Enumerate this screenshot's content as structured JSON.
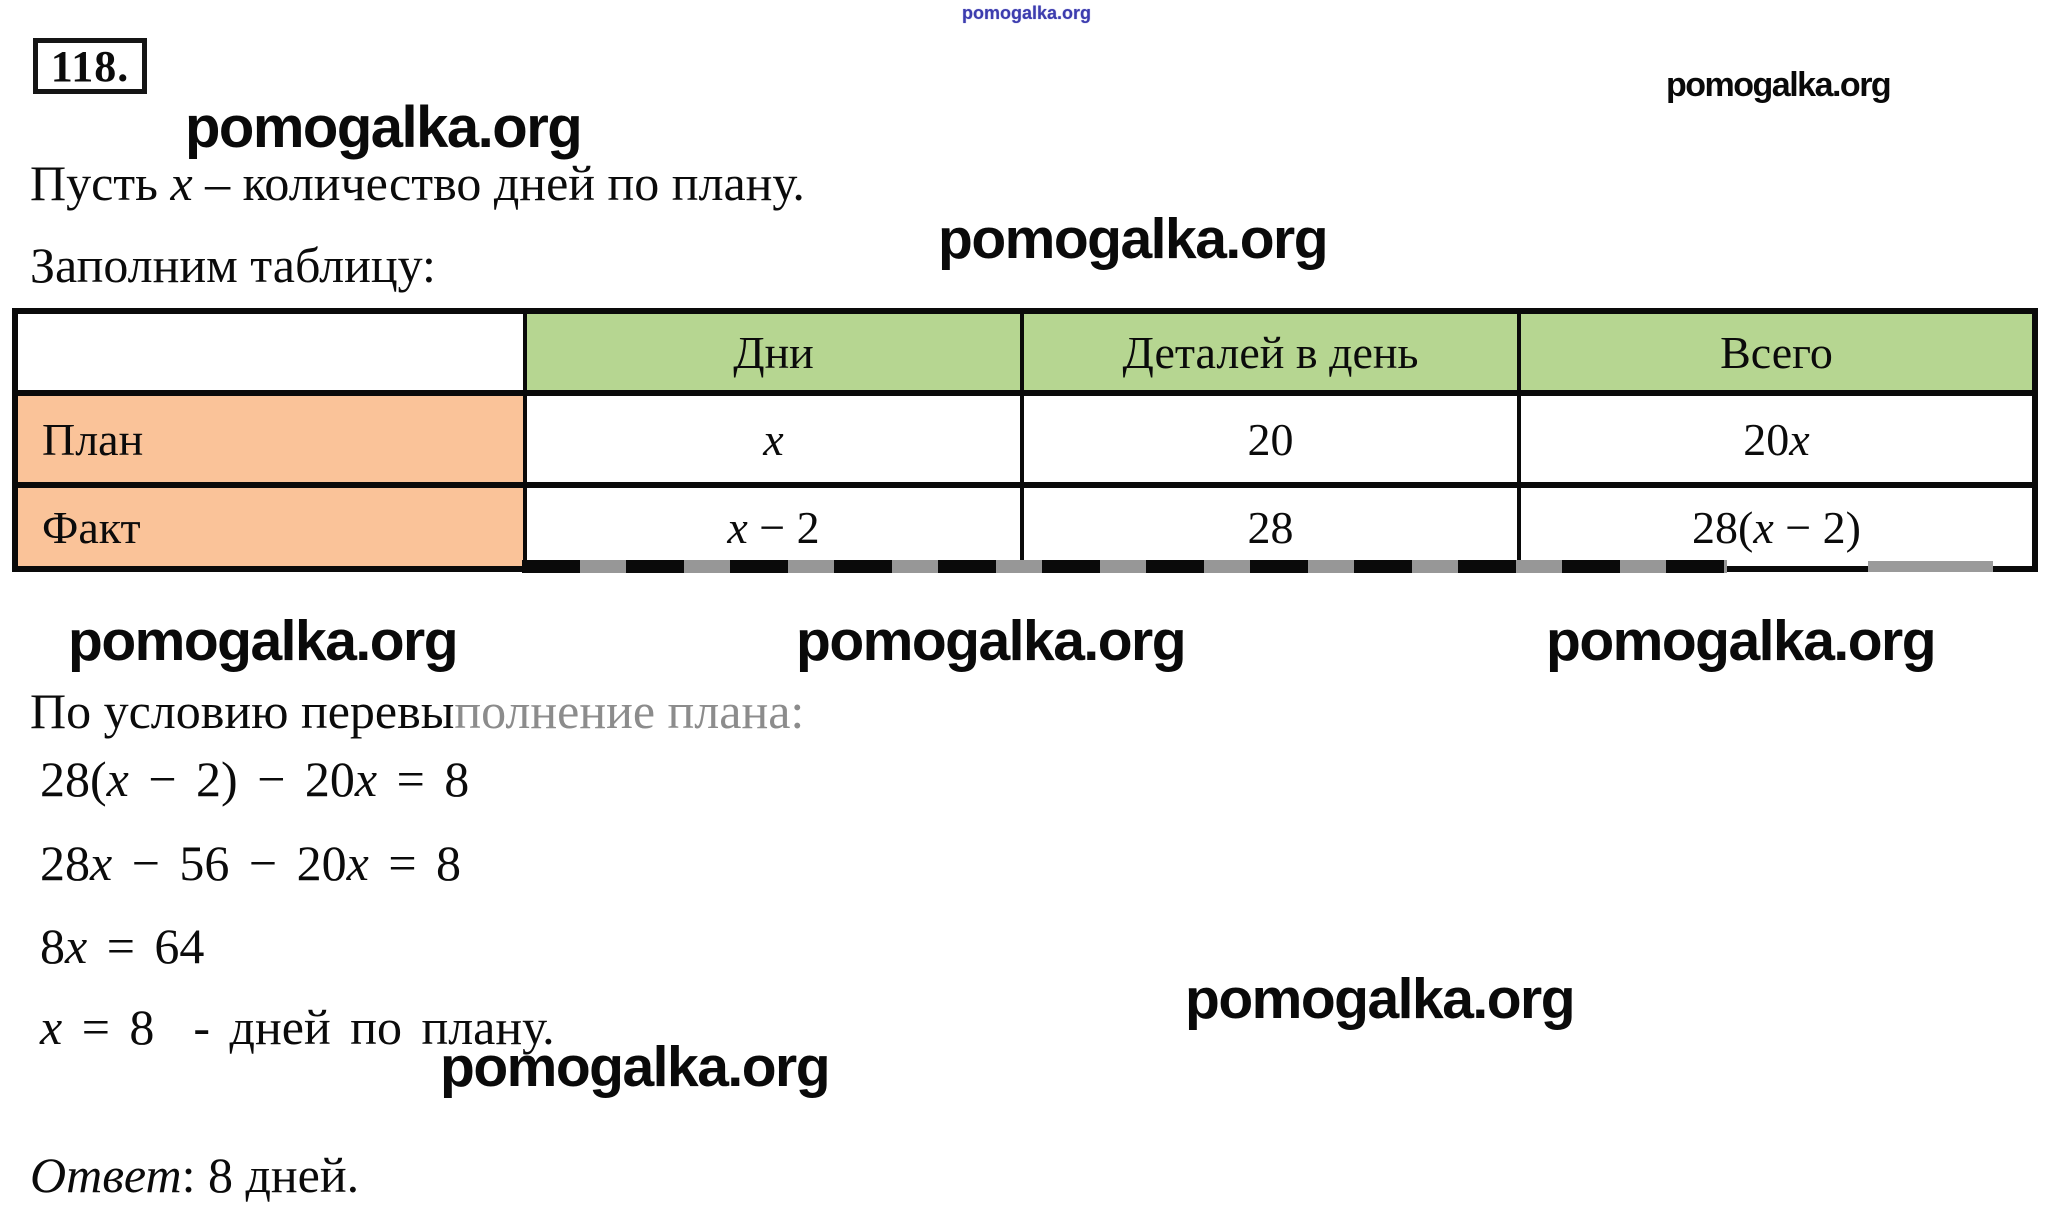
{
  "problem": {
    "number": "118."
  },
  "watermark": {
    "text": "pomogalka.org",
    "blue_color": "#3c3cae",
    "black_color": "#0a0a0a"
  },
  "intro": {
    "segments": [
      {
        "t": "Пусть "
      },
      {
        "t": "x",
        "i": true
      },
      {
        "t": " – количество дней по плану."
      }
    ]
  },
  "fill_table_label": "Заполним таблицу:",
  "table": {
    "header_bg": "#b6d691",
    "label_bg": "#fac399",
    "border_color": "#0a0a0a",
    "headers": [
      "",
      "Дни",
      "Деталей в день",
      "Всего"
    ],
    "rows": [
      {
        "label": "План",
        "days": [
          {
            "t": "x",
            "i": true
          }
        ],
        "per_day": [
          {
            "t": "20"
          }
        ],
        "total": [
          {
            "t": "20"
          },
          {
            "t": "x",
            "i": true
          }
        ]
      },
      {
        "label": "Факт",
        "days": [
          {
            "t": "x",
            "i": true
          },
          {
            "t": " − 2"
          }
        ],
        "per_day": [
          {
            "t": "28"
          }
        ],
        "total": [
          {
            "t": "28("
          },
          {
            "t": "x",
            "i": true
          },
          {
            "t": " − 2)"
          }
        ]
      }
    ]
  },
  "condition": {
    "segments": [
      {
        "t": "По условию перевы"
      },
      {
        "t": "полнение плана:",
        "g": true
      }
    ]
  },
  "equations": [
    {
      "segments": [
        {
          "t": "28("
        },
        {
          "t": "x",
          "i": true
        },
        {
          "t": " − 2) − 20"
        },
        {
          "t": "x",
          "i": true
        },
        {
          "t": " = 8"
        }
      ]
    },
    {
      "segments": [
        {
          "t": "28"
        },
        {
          "t": "x",
          "i": true
        },
        {
          "t": " − 56 − 20"
        },
        {
          "t": "x",
          "i": true
        },
        {
          "t": " = 8"
        }
      ]
    },
    {
      "segments": [
        {
          "t": "8"
        },
        {
          "t": "x",
          "i": true
        },
        {
          "t": " = 64"
        }
      ]
    },
    {
      "segments": [
        {
          "t": "x",
          "i": true
        },
        {
          "t": " = 8  - дней по плану."
        }
      ]
    }
  ],
  "answer": {
    "segments": [
      {
        "t": "Ответ",
        "i": true
      },
      {
        "t": ": 8 дней."
      }
    ]
  }
}
